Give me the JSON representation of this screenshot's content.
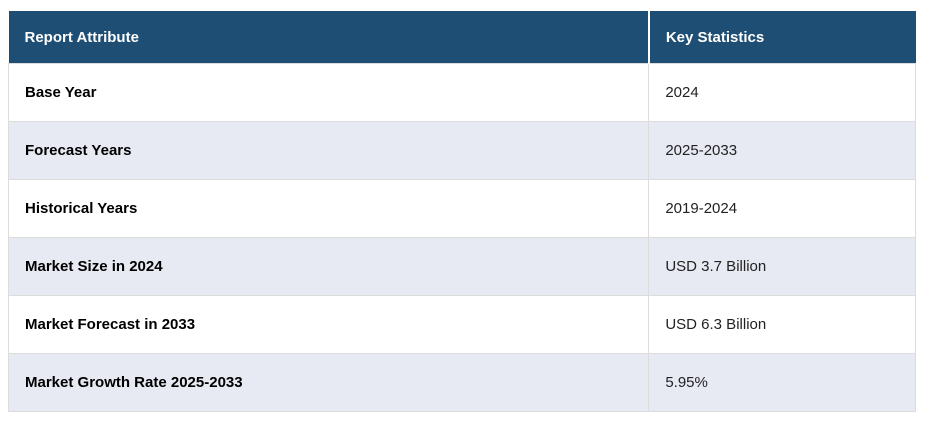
{
  "table": {
    "headers": {
      "attribute": "Report Attribute",
      "statistics": "Key Statistics"
    },
    "rows": [
      {
        "attribute": "Base Year",
        "value": "2024"
      },
      {
        "attribute": "Forecast Years",
        "value": "2025-2033"
      },
      {
        "attribute": "Historical Years",
        "value": "2019-2024"
      },
      {
        "attribute": "Market Size in 2024",
        "value": "USD 3.7 Billion"
      },
      {
        "attribute": "Market Forecast in 2033",
        "value": "USD 6.3 Billion"
      },
      {
        "attribute": "Market Growth Rate 2025-2033",
        "value": "5.95%"
      }
    ]
  },
  "colors": {
    "header_bg": "#1E4E74",
    "header_text": "#FFFFFF",
    "row_bg": "#FFFFFF",
    "row_alt_bg": "#E7E9F3",
    "grid_border": "#DCDCDC",
    "label_text": "#000000",
    "value_text": "#222222"
  },
  "chart_data": {
    "type": "table",
    "columns": [
      "Report Attribute",
      "Key Statistics"
    ],
    "rows": [
      [
        "Base Year",
        "2024"
      ],
      [
        "Forecast Years",
        "2025-2033"
      ],
      [
        "Historical Years",
        "2019-2024"
      ],
      [
        "Market Size in 2024",
        "USD 3.7 Billion"
      ],
      [
        "Market Forecast in 2033",
        "USD 6.3 Billion"
      ],
      [
        "Market Growth Rate 2025-2033",
        "5.95%"
      ]
    ],
    "title": "",
    "legend": "none",
    "grid": "on"
  }
}
